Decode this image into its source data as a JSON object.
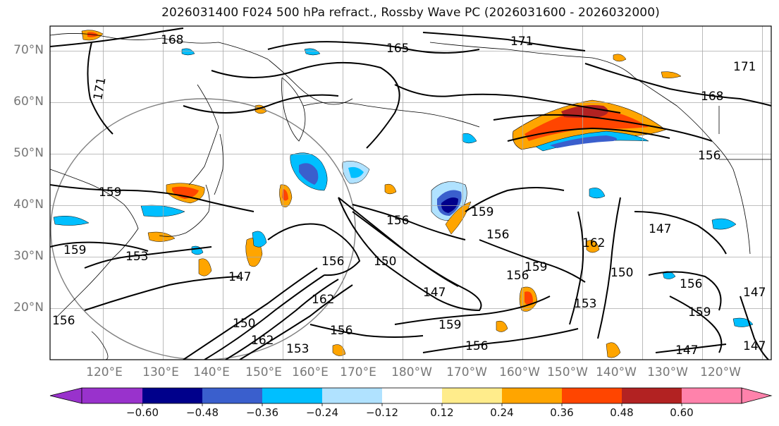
{
  "title": "2026031400 F024 500 hPa refract., Rossby Wave PC (2026031600 - 2026032000)",
  "lat_labels": [
    "70°N",
    "60°N",
    "50°N",
    "40°N",
    "30°N",
    "20°N"
  ],
  "lon_labels": [
    "120°E",
    "130°E",
    "140°E",
    "150°E",
    "160°E",
    "170°E",
    "180°W",
    "170°W",
    "160°W",
    "150°W",
    "140°W",
    "130°W",
    "120°W"
  ],
  "colorbar": {
    "ticks": [
      "−0.60",
      "−0.48",
      "−0.36",
      "−0.24",
      "−0.12",
      "0.12",
      "0.24",
      "0.36",
      "0.48",
      "0.60"
    ],
    "colors": [
      "#9932cc",
      "#00008b",
      "#3a5fcd",
      "#00bfff",
      "#b0e2ff",
      "#ffffff",
      "#ffec8b",
      "#ffa500",
      "#ff4500",
      "#b22222",
      "#ff82ab"
    ]
  },
  "contour_labels": [
    "168",
    "165",
    "171",
    "171",
    "171",
    "168",
    "159",
    "159",
    "153",
    "147",
    "156",
    "156",
    "150",
    "147",
    "159",
    "156",
    "159",
    "156",
    "159",
    "156",
    "162",
    "150",
    "147",
    "156",
    "159",
    "147",
    "156",
    "162",
    "150",
    "156",
    "153",
    "162",
    "147",
    "147",
    "156",
    "153"
  ],
  "colors": {
    "contour": "#000000",
    "grid": "#aaaaaa",
    "coast": "#000000",
    "label_gray": "#777777"
  }
}
